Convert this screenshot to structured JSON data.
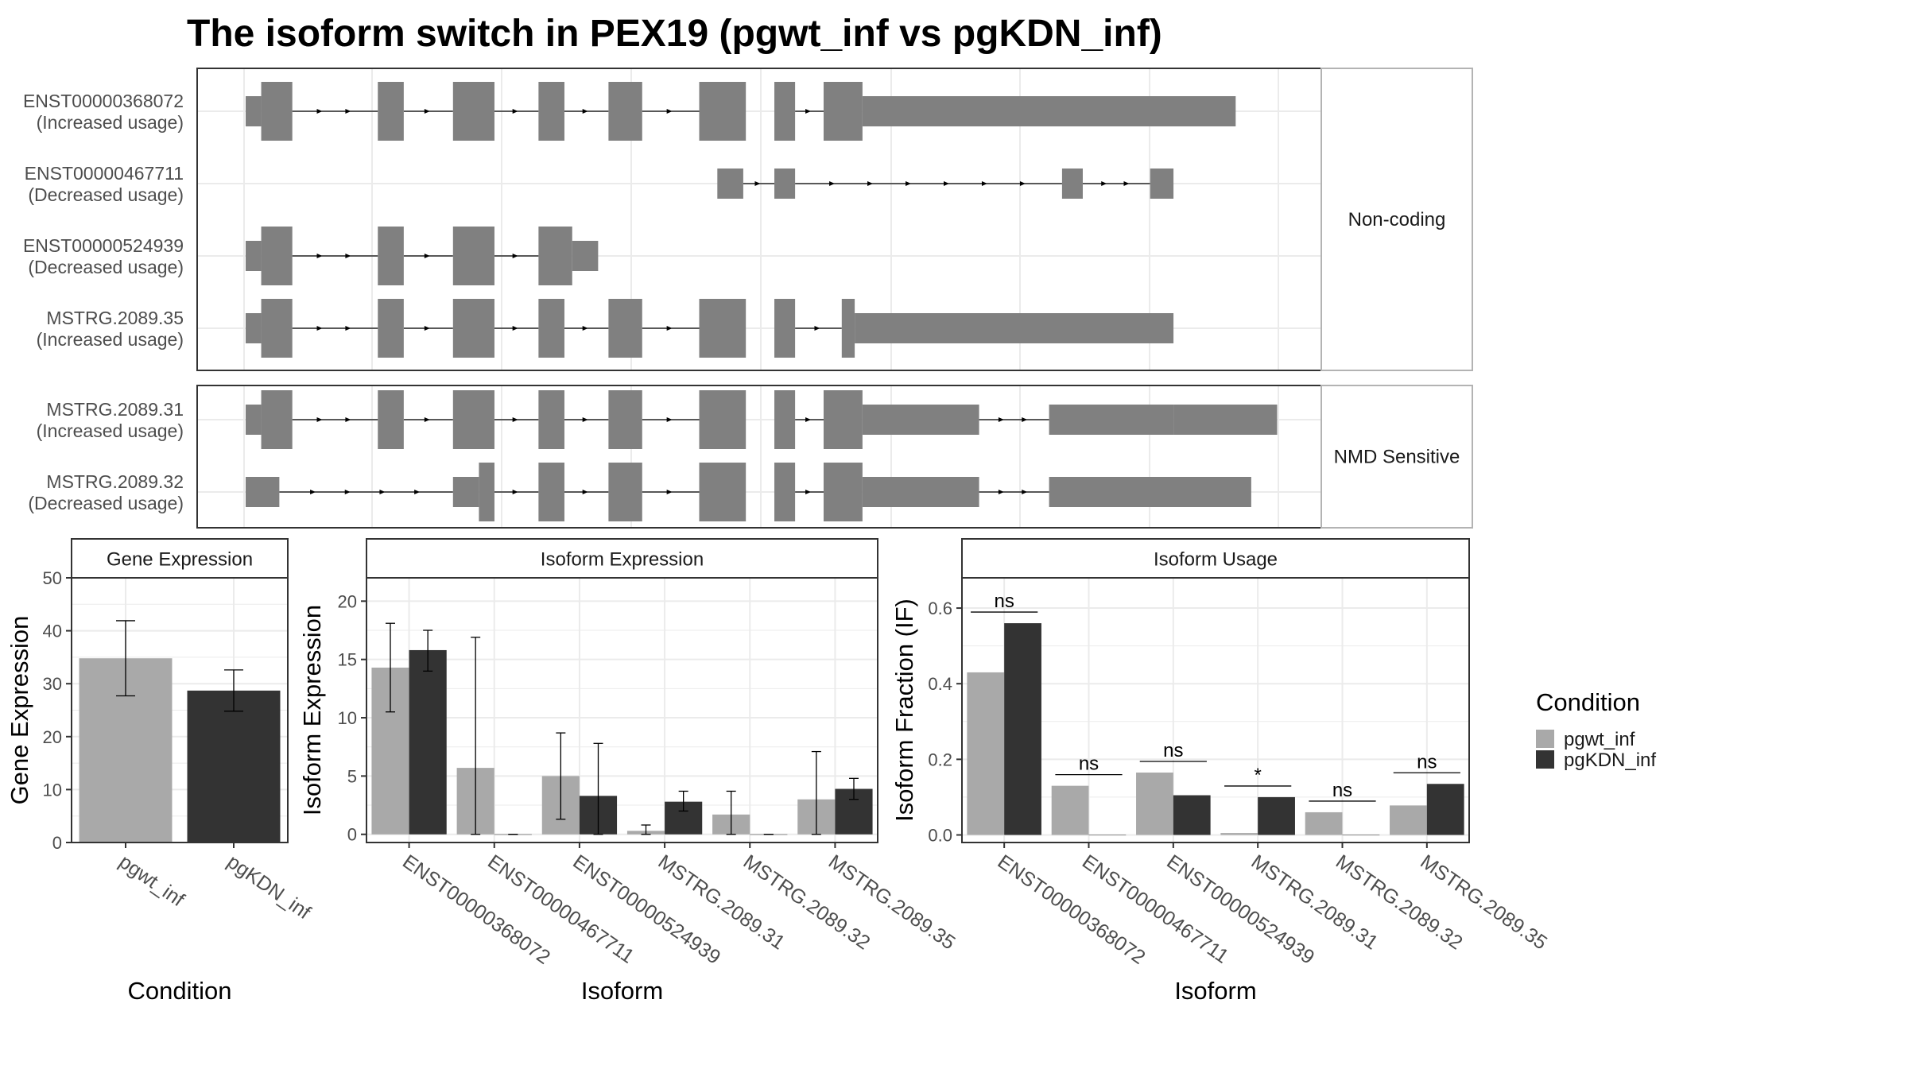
{
  "title": "The isoform switch in PEX19 (pgwt_inf vs pgKDN_inf)",
  "colors": {
    "exon": "#808080",
    "panel_border": "#333333",
    "strip_border": "#b3b3b3",
    "strip_bg": "#ffffff",
    "grid": "#ebebeb",
    "pgwt_inf": "#a9a9a9",
    "pgKDN_inf": "#333333"
  },
  "structure_panels": [
    {
      "strip": "Non-coding",
      "isoforms": [
        {
          "id": "ENST00000368072",
          "change": "(Increased usage)",
          "exons": [
            [
              0,
              0.6,
              "n"
            ],
            [
              0.6,
              1.8,
              "w"
            ],
            [
              5.1,
              6.1,
              "w"
            ],
            [
              8.0,
              9.6,
              "w"
            ],
            [
              11.3,
              12.3,
              "w"
            ],
            [
              14.0,
              15.3,
              "w"
            ],
            [
              17.5,
              19.3,
              "w"
            ],
            [
              20.4,
              21.2,
              "w"
            ],
            [
              22.3,
              23.8,
              "w"
            ],
            [
              23.8,
              38.2,
              "n"
            ]
          ],
          "intron_arrows": [
            [
              1.8,
              5.1
            ],
            [
              6.1,
              8.0
            ],
            [
              9.6,
              11.3
            ],
            [
              12.3,
              14.0
            ],
            [
              15.3,
              17.5
            ],
            [
              21.2,
              22.3
            ]
          ]
        },
        {
          "id": "ENST00000467711",
          "change": "(Decreased usage)",
          "exons": [
            [
              18.2,
              19.2,
              "m"
            ],
            [
              20.4,
              21.2,
              "m"
            ],
            [
              31.5,
              32.3,
              "m"
            ],
            [
              34.9,
              35.8,
              "m"
            ]
          ],
          "intron_arrows": [
            [
              19.2,
              20.4
            ],
            [
              21.2,
              31.5
            ],
            [
              32.3,
              34.9
            ]
          ]
        },
        {
          "id": "ENST00000524939",
          "change": "(Decreased usage)",
          "exons": [
            [
              0,
              0.6,
              "n"
            ],
            [
              0.6,
              1.8,
              "w"
            ],
            [
              5.1,
              6.1,
              "w"
            ],
            [
              8.0,
              9.6,
              "w"
            ],
            [
              11.3,
              12.6,
              "w"
            ],
            [
              12.6,
              13.6,
              "n"
            ]
          ],
          "intron_arrows": [
            [
              1.8,
              5.1
            ],
            [
              6.1,
              8.0
            ],
            [
              9.6,
              11.3
            ]
          ]
        },
        {
          "id": "MSTRG.2089.35",
          "change": "(Increased usage)",
          "exons": [
            [
              0,
              0.6,
              "n"
            ],
            [
              0.6,
              1.8,
              "w"
            ],
            [
              5.1,
              6.1,
              "w"
            ],
            [
              8.0,
              9.6,
              "w"
            ],
            [
              11.3,
              12.3,
              "w"
            ],
            [
              14.0,
              15.3,
              "w"
            ],
            [
              17.5,
              19.3,
              "w"
            ],
            [
              20.4,
              21.2,
              "w"
            ],
            [
              23.0,
              23.5,
              "w"
            ],
            [
              23.5,
              35.8,
              "n"
            ]
          ],
          "intron_arrows": [
            [
              1.8,
              5.1
            ],
            [
              6.1,
              8.0
            ],
            [
              9.6,
              11.3
            ],
            [
              12.3,
              14.0
            ],
            [
              15.3,
              17.5
            ],
            [
              21.2,
              23.0
            ]
          ]
        }
      ]
    },
    {
      "strip": "NMD Sensitive",
      "isoforms": [
        {
          "id": "MSTRG.2089.31",
          "change": "(Increased usage)",
          "exons": [
            [
              0,
              0.6,
              "n"
            ],
            [
              0.6,
              1.8,
              "w"
            ],
            [
              5.1,
              6.1,
              "w"
            ],
            [
              8.0,
              9.6,
              "w"
            ],
            [
              11.3,
              12.3,
              "w"
            ],
            [
              14.0,
              15.3,
              "w"
            ],
            [
              17.5,
              19.3,
              "w"
            ],
            [
              20.4,
              21.2,
              "w"
            ],
            [
              22.3,
              23.8,
              "w"
            ],
            [
              23.8,
              28.3,
              "n"
            ],
            [
              31.0,
              35.8,
              "n"
            ],
            [
              35.8,
              39.8,
              "n"
            ]
          ],
          "intron_arrows": [
            [
              1.8,
              5.1
            ],
            [
              6.1,
              8.0
            ],
            [
              9.6,
              11.3
            ],
            [
              12.3,
              14.0
            ],
            [
              15.3,
              17.5
            ],
            [
              21.2,
              22.3
            ],
            [
              28.3,
              31.0
            ]
          ]
        },
        {
          "id": "MSTRG.2089.32",
          "change": "(Decreased usage)",
          "exons": [
            [
              0,
              1.3,
              "n"
            ],
            [
              8.0,
              9.0,
              "n"
            ],
            [
              9.0,
              9.6,
              "w"
            ],
            [
              11.3,
              12.3,
              "w"
            ],
            [
              14.0,
              15.3,
              "w"
            ],
            [
              17.5,
              19.3,
              "w"
            ],
            [
              20.4,
              21.2,
              "w"
            ],
            [
              22.3,
              23.8,
              "w"
            ],
            [
              23.8,
              28.3,
              "n"
            ],
            [
              31.0,
              38.8,
              "n"
            ]
          ],
          "intron_arrows": [
            [
              1.3,
              8.0
            ],
            [
              9.6,
              11.3
            ],
            [
              12.3,
              14.0
            ],
            [
              15.3,
              17.5
            ],
            [
              21.2,
              22.3
            ],
            [
              28.3,
              31.0
            ]
          ]
        }
      ]
    }
  ],
  "chart_data": [
    {
      "type": "bar",
      "title": "Gene Expression",
      "xlabel": "Condition",
      "ylabel": "Gene Expression",
      "categories": [
        "pgwt_inf",
        "pgKDN_inf"
      ],
      "values": [
        34.8,
        28.7
      ],
      "error_bars": [
        [
          27.7,
          41.9
        ],
        [
          24.8,
          32.6
        ]
      ],
      "ylim": [
        0,
        50
      ],
      "yticks": [
        0,
        10,
        20,
        30,
        40,
        50
      ],
      "grid": true
    },
    {
      "type": "bar",
      "title": "Isoform Expression",
      "xlabel": "Isoform",
      "ylabel": "Isoform Expression",
      "categories": [
        "ENST00000368072",
        "ENST00000467711",
        "ENST00000524939",
        "MSTRG.2089.31",
        "MSTRG.2089.32",
        "MSTRG.2089.35"
      ],
      "series": [
        {
          "name": "pgwt_inf",
          "values": [
            14.3,
            5.7,
            5.0,
            0.3,
            1.7,
            3.0
          ],
          "error_bars": [
            [
              10.5,
              18.1
            ],
            [
              0,
              16.9
            ],
            [
              1.3,
              8.7
            ],
            [
              0,
              0.8
            ],
            [
              0,
              3.7
            ],
            [
              0,
              7.1
            ]
          ]
        },
        {
          "name": "pgKDN_inf",
          "values": [
            15.8,
            0.0,
            3.3,
            2.8,
            0.0,
            3.9
          ],
          "error_bars": [
            [
              14.0,
              17.5
            ],
            [
              0,
              0
            ],
            [
              0,
              7.8
            ],
            [
              2.0,
              3.7
            ],
            [
              0,
              0
            ],
            [
              3.0,
              4.8
            ]
          ]
        }
      ],
      "ylim": [
        -0.7,
        22
      ],
      "yticks": [
        0,
        5,
        10,
        15,
        20
      ],
      "grid": true
    },
    {
      "type": "bar",
      "title": "Isoform Usage",
      "xlabel": "Isoform",
      "ylabel": "Isoform Fraction (IF)",
      "categories": [
        "ENST00000368072",
        "ENST00000467711",
        "ENST00000524939",
        "MSTRG.2089.31",
        "MSTRG.2089.32",
        "MSTRG.2089.35"
      ],
      "series": [
        {
          "name": "pgwt_inf",
          "values": [
            0.43,
            0.13,
            0.165,
            0.005,
            0.06,
            0.078
          ]
        },
        {
          "name": "pgKDN_inf",
          "values": [
            0.56,
            0.0,
            0.105,
            0.1,
            0.0,
            0.135
          ]
        }
      ],
      "significance": [
        "ns",
        "ns",
        "ns",
        "*",
        "ns",
        "ns"
      ],
      "ylim": [
        -0.02,
        0.68
      ],
      "yticks": [
        0.0,
        0.2,
        0.4,
        0.6
      ],
      "grid": true
    }
  ],
  "legend": {
    "title": "Condition",
    "items": [
      "pgwt_inf",
      "pgKDN_inf"
    ],
    "placement": "right"
  }
}
